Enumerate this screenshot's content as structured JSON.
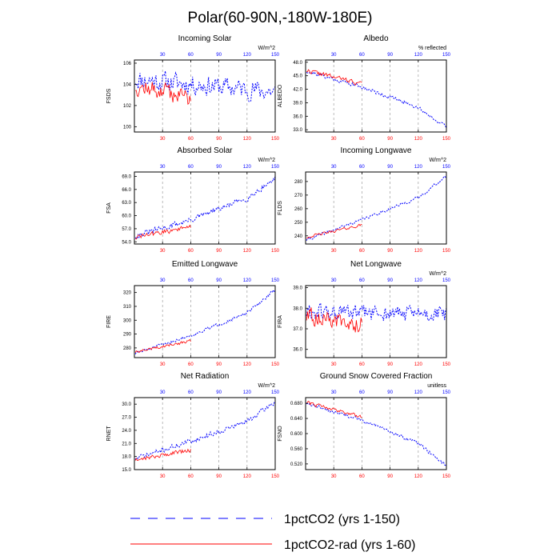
{
  "figure_title": "Polar(60-90N,-180W-180E)",
  "colors": {
    "series1": "#0000ff",
    "series2": "#ff0000",
    "grid": "#aaaaaa",
    "axis": "#000000"
  },
  "legend": [
    {
      "label": "1pctCO2 (yrs 1-150)",
      "style": "dashed",
      "color": "#0000ff"
    },
    {
      "label": "1pctCO2-rad (yrs 1-60)",
      "style": "solid",
      "color": "#ff0000"
    }
  ],
  "chart_data": [
    {
      "type": "line",
      "title": "Incoming Solar",
      "ylabel": "FSDS",
      "units": "W/m^2",
      "xlim": [
        0,
        150
      ],
      "ylim": [
        99.5,
        106.3
      ],
      "xticks_top": [
        "30",
        "60",
        "90",
        "120",
        "150"
      ],
      "xticks_bottom": [
        "30",
        "60",
        "90",
        "120",
        "150"
      ],
      "yticks": [
        "100",
        "102",
        "104",
        "106"
      ],
      "ytick_values": [
        100,
        102,
        104,
        106
      ],
      "grid": "vertical dashed at 30,60,90,120",
      "series": [
        {
          "name": "1pctCO2 (yrs 1-150)",
          "x_range": [
            1,
            150
          ],
          "trend": [
            [
              1,
              104.5
            ],
            [
              150,
              103.3
            ]
          ],
          "noise": 1.3,
          "seed": 11
        },
        {
          "name": "1pctCO2-rad (yrs 1-60)",
          "x_range": [
            1,
            60
          ],
          "trend": [
            [
              1,
              103.8
            ],
            [
              60,
              102.8
            ]
          ],
          "noise": 1.2,
          "seed": 12
        }
      ]
    },
    {
      "type": "line",
      "title": "Albedo",
      "ylabel": "ALBEDO",
      "units": "% reflected",
      "xlim": [
        0,
        150
      ],
      "ylim": [
        32.5,
        48.5
      ],
      "xticks_top": [
        "30",
        "60",
        "90",
        "120",
        "150"
      ],
      "xticks_bottom": [
        "30",
        "60",
        "90",
        "120",
        "150"
      ],
      "yticks": [
        "33.0",
        "36.0",
        "39.0",
        "42.0",
        "45.0",
        "48.0"
      ],
      "ytick_values": [
        33,
        36,
        39,
        42,
        45,
        48
      ],
      "grid": "vertical dashed at 30,60,90,120",
      "series": [
        {
          "name": "1pctCO2 (yrs 1-150)",
          "x_range": [
            1,
            150
          ],
          "trend": [
            [
              1,
              46.0
            ],
            [
              60,
              42.5
            ],
            [
              120,
              38.0
            ],
            [
              150,
              33.5
            ]
          ],
          "noise": 0.6,
          "seed": 21
        },
        {
          "name": "1pctCO2-rad (yrs 1-60)",
          "x_range": [
            1,
            60
          ],
          "trend": [
            [
              1,
              46.2
            ],
            [
              60,
              43.2
            ]
          ],
          "noise": 0.7,
          "seed": 22
        }
      ]
    },
    {
      "type": "line",
      "title": "Absorbed Solar",
      "ylabel": "FSA",
      "units": "W/m^2",
      "xlim": [
        0,
        150
      ],
      "ylim": [
        53.5,
        70
      ],
      "xticks_top": [
        "30",
        "60",
        "90",
        "120",
        "150"
      ],
      "xticks_bottom": [
        "30",
        "60",
        "90",
        "120",
        "150"
      ],
      "yticks": [
        "54.0",
        "57.0",
        "60.0",
        "63.0",
        "66.0",
        "69.0"
      ],
      "ytick_values": [
        54,
        57,
        60,
        63,
        66,
        69
      ],
      "grid": "vertical dashed at 30,60,90,120",
      "series": [
        {
          "name": "1pctCO2 (yrs 1-150)",
          "x_range": [
            1,
            150
          ],
          "trend": [
            [
              1,
              55.3
            ],
            [
              60,
              59.0
            ],
            [
              120,
              64.0
            ],
            [
              150,
              68.5
            ]
          ],
          "noise": 0.9,
          "seed": 31
        },
        {
          "name": "1pctCO2-rad (yrs 1-60)",
          "x_range": [
            1,
            60
          ],
          "trend": [
            [
              1,
              55.0
            ],
            [
              60,
              57.5
            ]
          ],
          "noise": 0.8,
          "seed": 32
        }
      ]
    },
    {
      "type": "line",
      "title": "Incoming Longwave",
      "ylabel": "FLDS",
      "units": "W/m^2",
      "xlim": [
        0,
        150
      ],
      "ylim": [
        234,
        287
      ],
      "xticks_top": [
        "30",
        "60",
        "90",
        "120",
        "150"
      ],
      "xticks_bottom": [
        "30",
        "60",
        "90",
        "120",
        "150"
      ],
      "yticks": [
        "240",
        "250",
        "260",
        "270",
        "280"
      ],
      "ytick_values": [
        240,
        250,
        260,
        270,
        280
      ],
      "grid": "vertical dashed at 30,60,90,120",
      "series": [
        {
          "name": "1pctCO2 (yrs 1-150)",
          "x_range": [
            1,
            150
          ],
          "trend": [
            [
              1,
              237
            ],
            [
              60,
              252
            ],
            [
              120,
              268
            ],
            [
              150,
              284
            ]
          ],
          "noise": 1.5,
          "seed": 41
        },
        {
          "name": "1pctCO2-rad (yrs 1-60)",
          "x_range": [
            1,
            60
          ],
          "trend": [
            [
              1,
              239
            ],
            [
              60,
              248
            ]
          ],
          "noise": 1.4,
          "seed": 42
        }
      ]
    },
    {
      "type": "line",
      "title": "Emitted Longwave",
      "ylabel": "FIRE",
      "units": "",
      "xlim": [
        0,
        150
      ],
      "ylim": [
        273,
        325
      ],
      "xticks_top": [
        "30",
        "60",
        "90",
        "120",
        "150"
      ],
      "xticks_bottom": [
        "30",
        "60",
        "90",
        "120",
        "150"
      ],
      "yticks": [
        "280",
        "290",
        "300",
        "310",
        "320"
      ],
      "ytick_values": [
        280,
        290,
        300,
        310,
        320
      ],
      "grid": "vertical dashed at 30,60,90,120",
      "series": [
        {
          "name": "1pctCO2 (yrs 1-150)",
          "x_range": [
            1,
            150
          ],
          "trend": [
            [
              1,
              276
            ],
            [
              60,
              289
            ],
            [
              120,
              305
            ],
            [
              150,
              322
            ]
          ],
          "noise": 1.6,
          "seed": 51
        },
        {
          "name": "1pctCO2-rad (yrs 1-60)",
          "x_range": [
            1,
            60
          ],
          "trend": [
            [
              1,
              277
            ],
            [
              60,
              285
            ]
          ],
          "noise": 1.5,
          "seed": 52
        }
      ]
    },
    {
      "type": "line",
      "title": "Net Longwave",
      "ylabel": "FIRA",
      "units": "W/m^2",
      "xlim": [
        0,
        150
      ],
      "ylim": [
        35.6,
        39.1
      ],
      "xticks_top": [
        "30",
        "60",
        "90",
        "120",
        "150"
      ],
      "xticks_bottom": [
        "30",
        "60",
        "90",
        "120",
        "150"
      ],
      "yticks": [
        "36.0",
        "37.0",
        "38.0",
        "39.0"
      ],
      "ytick_values": [
        36,
        37,
        38,
        39
      ],
      "grid": "vertical dashed at 30,60,90,120",
      "series": [
        {
          "name": "1pctCO2 (yrs 1-150)",
          "x_range": [
            1,
            150
          ],
          "trend": [
            [
              1,
              37.8
            ],
            [
              150,
              37.7
            ]
          ],
          "noise": 0.55,
          "seed": 61
        },
        {
          "name": "1pctCO2-rad (yrs 1-60)",
          "x_range": [
            1,
            60
          ],
          "trend": [
            [
              1,
              37.6
            ],
            [
              60,
              37.2
            ]
          ],
          "noise": 0.6,
          "seed": 62
        }
      ]
    },
    {
      "type": "line",
      "title": "Net Radiation",
      "ylabel": "RNET",
      "units": "W/m^2",
      "xlim": [
        0,
        150
      ],
      "ylim": [
        15,
        31.5
      ],
      "xticks_top": [
        "30",
        "60",
        "90",
        "120",
        "150"
      ],
      "xticks_bottom": [
        "30",
        "60",
        "90",
        "120",
        "150"
      ],
      "yticks": [
        "15.0",
        "18.0",
        "21.0",
        "24.0",
        "27.0",
        "30.0"
      ],
      "ytick_values": [
        15,
        18,
        21,
        24,
        27,
        30
      ],
      "grid": "vertical dashed at 30,60,90,120",
      "series": [
        {
          "name": "1pctCO2 (yrs 1-150)",
          "x_range": [
            1,
            150
          ],
          "trend": [
            [
              1,
              17.5
            ],
            [
              60,
              21.5
            ],
            [
              120,
              26.0
            ],
            [
              150,
              30.5
            ]
          ],
          "noise": 0.8,
          "seed": 71
        },
        {
          "name": "1pctCO2-rad (yrs 1-60)",
          "x_range": [
            1,
            60
          ],
          "trend": [
            [
              1,
              17.3
            ],
            [
              60,
              19.5
            ]
          ],
          "noise": 0.7,
          "seed": 72
        }
      ]
    },
    {
      "type": "line",
      "title": "Ground Snow Covered Fraction",
      "ylabel": "FSNO",
      "units": "unitless",
      "xlim": [
        0,
        150
      ],
      "ylim": [
        0.505,
        0.695
      ],
      "xticks_top": [
        "30",
        "60",
        "90",
        "120",
        "150"
      ],
      "xticks_bottom": [
        "30",
        "60",
        "90",
        "120",
        "150"
      ],
      "yticks": [
        "0.520",
        "0.560",
        "0.600",
        "0.640",
        "0.680"
      ],
      "ytick_values": [
        0.52,
        0.56,
        0.6,
        0.64,
        0.68
      ],
      "grid": "vertical dashed at 30,60,90,120",
      "series": [
        {
          "name": "1pctCO2 (yrs 1-150)",
          "x_range": [
            1,
            150
          ],
          "trend": [
            [
              1,
              0.68
            ],
            [
              60,
              0.635
            ],
            [
              120,
              0.575
            ],
            [
              150,
              0.515
            ]
          ],
          "noise": 0.006,
          "seed": 81
        },
        {
          "name": "1pctCO2-rad (yrs 1-60)",
          "x_range": [
            1,
            60
          ],
          "trend": [
            [
              1,
              0.682
            ],
            [
              60,
              0.645
            ]
          ],
          "noise": 0.007,
          "seed": 82
        }
      ]
    }
  ]
}
